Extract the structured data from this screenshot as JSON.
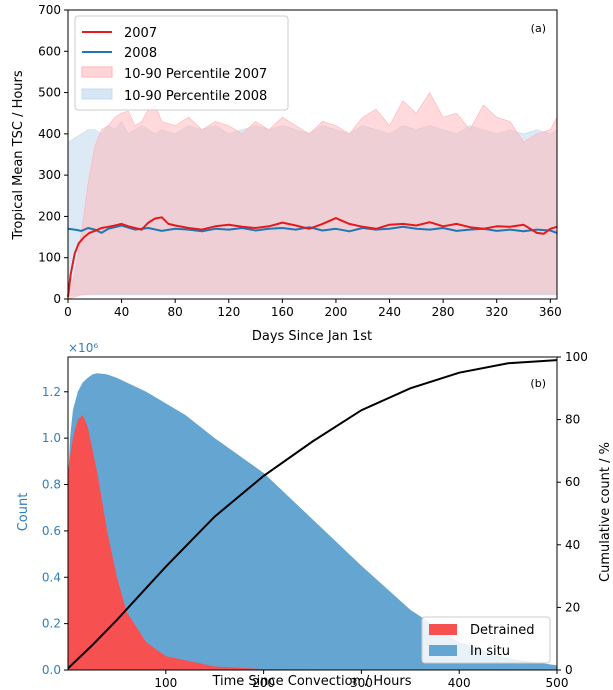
{
  "chart_data": [
    {
      "type": "line",
      "panel_label": "(a)",
      "xlabel": "Days Since Jan 1st",
      "ylabel": "Tropical Mean TSC / Hours",
      "xlim": [
        0,
        365
      ],
      "ylim": [
        0,
        700
      ],
      "xticks": [
        0,
        40,
        80,
        120,
        160,
        200,
        240,
        280,
        320,
        360
      ],
      "yticks": [
        0,
        100,
        200,
        300,
        400,
        500,
        600,
        700
      ],
      "legend_position": "top-left",
      "series": [
        {
          "name": "2007",
          "color": "#e41a1c",
          "x": [
            0,
            2,
            5,
            8,
            12,
            16,
            20,
            25,
            30,
            35,
            40,
            45,
            50,
            55,
            60,
            65,
            70,
            75,
            80,
            90,
            100,
            110,
            120,
            130,
            140,
            150,
            160,
            170,
            180,
            190,
            200,
            210,
            220,
            230,
            240,
            250,
            260,
            270,
            280,
            290,
            300,
            310,
            320,
            330,
            340,
            350,
            355,
            360,
            365
          ],
          "values": [
            5,
            60,
            110,
            135,
            150,
            160,
            165,
            172,
            175,
            178,
            182,
            176,
            172,
            168,
            185,
            195,
            198,
            182,
            178,
            172,
            168,
            176,
            180,
            175,
            172,
            176,
            185,
            178,
            170,
            182,
            196,
            182,
            175,
            170,
            180,
            182,
            178,
            186,
            176,
            182,
            174,
            170,
            176,
            175,
            180,
            160,
            158,
            170,
            175
          ]
        },
        {
          "name": "2008",
          "color": "#1f77b4",
          "x": [
            0,
            5,
            10,
            15,
            20,
            25,
            30,
            40,
            50,
            60,
            70,
            80,
            90,
            100,
            110,
            120,
            130,
            140,
            150,
            160,
            170,
            180,
            190,
            200,
            210,
            220,
            230,
            240,
            250,
            260,
            270,
            280,
            290,
            300,
            310,
            320,
            330,
            340,
            350,
            360,
            365
          ],
          "values": [
            170,
            168,
            165,
            172,
            168,
            160,
            170,
            178,
            168,
            172,
            165,
            170,
            168,
            164,
            170,
            168,
            172,
            166,
            170,
            172,
            168,
            174,
            166,
            170,
            164,
            172,
            168,
            170,
            175,
            170,
            168,
            172,
            165,
            168,
            170,
            165,
            168,
            164,
            168,
            166,
            160
          ]
        }
      ],
      "bands": [
        {
          "name": "10-90 Percentile 2007",
          "color": "#ffb3b8",
          "x": [
            0,
            5,
            10,
            15,
            20,
            25,
            30,
            35,
            40,
            45,
            50,
            55,
            60,
            65,
            70,
            80,
            90,
            100,
            110,
            120,
            130,
            140,
            150,
            160,
            170,
            180,
            190,
            200,
            210,
            220,
            230,
            240,
            250,
            260,
            270,
            280,
            290,
            300,
            310,
            320,
            330,
            340,
            350,
            360,
            365
          ],
          "upper": [
            5,
            60,
            160,
            280,
            370,
            410,
            420,
            440,
            450,
            455,
            420,
            430,
            460,
            470,
            430,
            420,
            440,
            410,
            430,
            420,
            400,
            430,
            410,
            440,
            420,
            400,
            430,
            420,
            400,
            440,
            460,
            420,
            480,
            450,
            500,
            440,
            450,
            410,
            470,
            440,
            430,
            380,
            400,
            410,
            440
          ],
          "lower": [
            0,
            5,
            10,
            12,
            12,
            12,
            12,
            12,
            12,
            12,
            12,
            12,
            12,
            12,
            12,
            12,
            12,
            12,
            12,
            12,
            12,
            12,
            12,
            12,
            12,
            12,
            12,
            12,
            12,
            12,
            12,
            12,
            12,
            12,
            12,
            12,
            12,
            12,
            12,
            12,
            12,
            12,
            12,
            12,
            12
          ]
        },
        {
          "name": "10-90 Percentile 2008",
          "color": "#c6dcef",
          "x": [
            0,
            5,
            10,
            15,
            20,
            25,
            30,
            35,
            40,
            45,
            50,
            55,
            60,
            65,
            70,
            80,
            90,
            100,
            110,
            120,
            130,
            140,
            150,
            160,
            170,
            180,
            190,
            200,
            210,
            220,
            230,
            240,
            250,
            260,
            270,
            280,
            290,
            300,
            310,
            320,
            330,
            340,
            350,
            360,
            365
          ],
          "upper": [
            380,
            390,
            400,
            410,
            410,
            400,
            420,
            410,
            430,
            400,
            410,
            420,
            410,
            400,
            410,
            400,
            420,
            410,
            420,
            400,
            410,
            420,
            410,
            420,
            410,
            400,
            420,
            410,
            400,
            420,
            410,
            400,
            420,
            410,
            420,
            410,
            400,
            420,
            410,
            400,
            410,
            400,
            410,
            400,
            410
          ],
          "lower": [
            8,
            10,
            10,
            10,
            10,
            10,
            10,
            10,
            10,
            10,
            10,
            10,
            10,
            10,
            10,
            10,
            10,
            10,
            10,
            10,
            10,
            10,
            10,
            10,
            10,
            10,
            10,
            10,
            10,
            10,
            10,
            10,
            10,
            10,
            10,
            10,
            10,
            10,
            10,
            10,
            10,
            10,
            10,
            10,
            10
          ]
        }
      ]
    },
    {
      "type": "area",
      "panel_label": "(b)",
      "xlabel": "Time Since Convection / Hours",
      "ylabel": "Count",
      "y2label": "Cumulative count / %",
      "y_scale_label": "×10⁶",
      "xlim": [
        0,
        500
      ],
      "ylim": [
        0,
        1.35
      ],
      "y2lim": [
        0,
        100
      ],
      "xticks": [
        100,
        200,
        300,
        400,
        500
      ],
      "yticks": [
        0.0,
        0.2,
        0.4,
        0.6,
        0.8,
        1.0,
        1.2
      ],
      "y2ticks": [
        0,
        20,
        40,
        60,
        80,
        100
      ],
      "legend_position": "bottom-right",
      "series": [
        {
          "name": "In situ",
          "color": "#64a5d2",
          "x": [
            0,
            2,
            5,
            10,
            15,
            20,
            25,
            30,
            35,
            40,
            50,
            60,
            80,
            100,
            120,
            150,
            200,
            250,
            300,
            350,
            400,
            450,
            500
          ],
          "values": [
            0.8,
            1.0,
            1.12,
            1.2,
            1.24,
            1.26,
            1.275,
            1.28,
            1.278,
            1.275,
            1.26,
            1.24,
            1.2,
            1.15,
            1.1,
            1.0,
            0.85,
            0.65,
            0.45,
            0.26,
            0.12,
            0.05,
            0.02
          ]
        },
        {
          "name": "Detrained",
          "color": "#f75050",
          "x": [
            0,
            2,
            5,
            10,
            15,
            20,
            25,
            30,
            40,
            50,
            60,
            80,
            100,
            150,
            200,
            300,
            500
          ],
          "values": [
            0.85,
            0.92,
            1.0,
            1.08,
            1.1,
            1.05,
            0.95,
            0.85,
            0.6,
            0.4,
            0.25,
            0.12,
            0.06,
            0.015,
            0.004,
            0.001,
            0.0
          ]
        },
        {
          "name": "Cumulative",
          "color": "#000000",
          "axis": "right",
          "x": [
            0,
            25,
            50,
            100,
            150,
            200,
            250,
            300,
            350,
            400,
            450,
            500
          ],
          "values": [
            0.5,
            8,
            16,
            33,
            49,
            62,
            73,
            83,
            90,
            95,
            98,
            99
          ]
        }
      ]
    }
  ]
}
